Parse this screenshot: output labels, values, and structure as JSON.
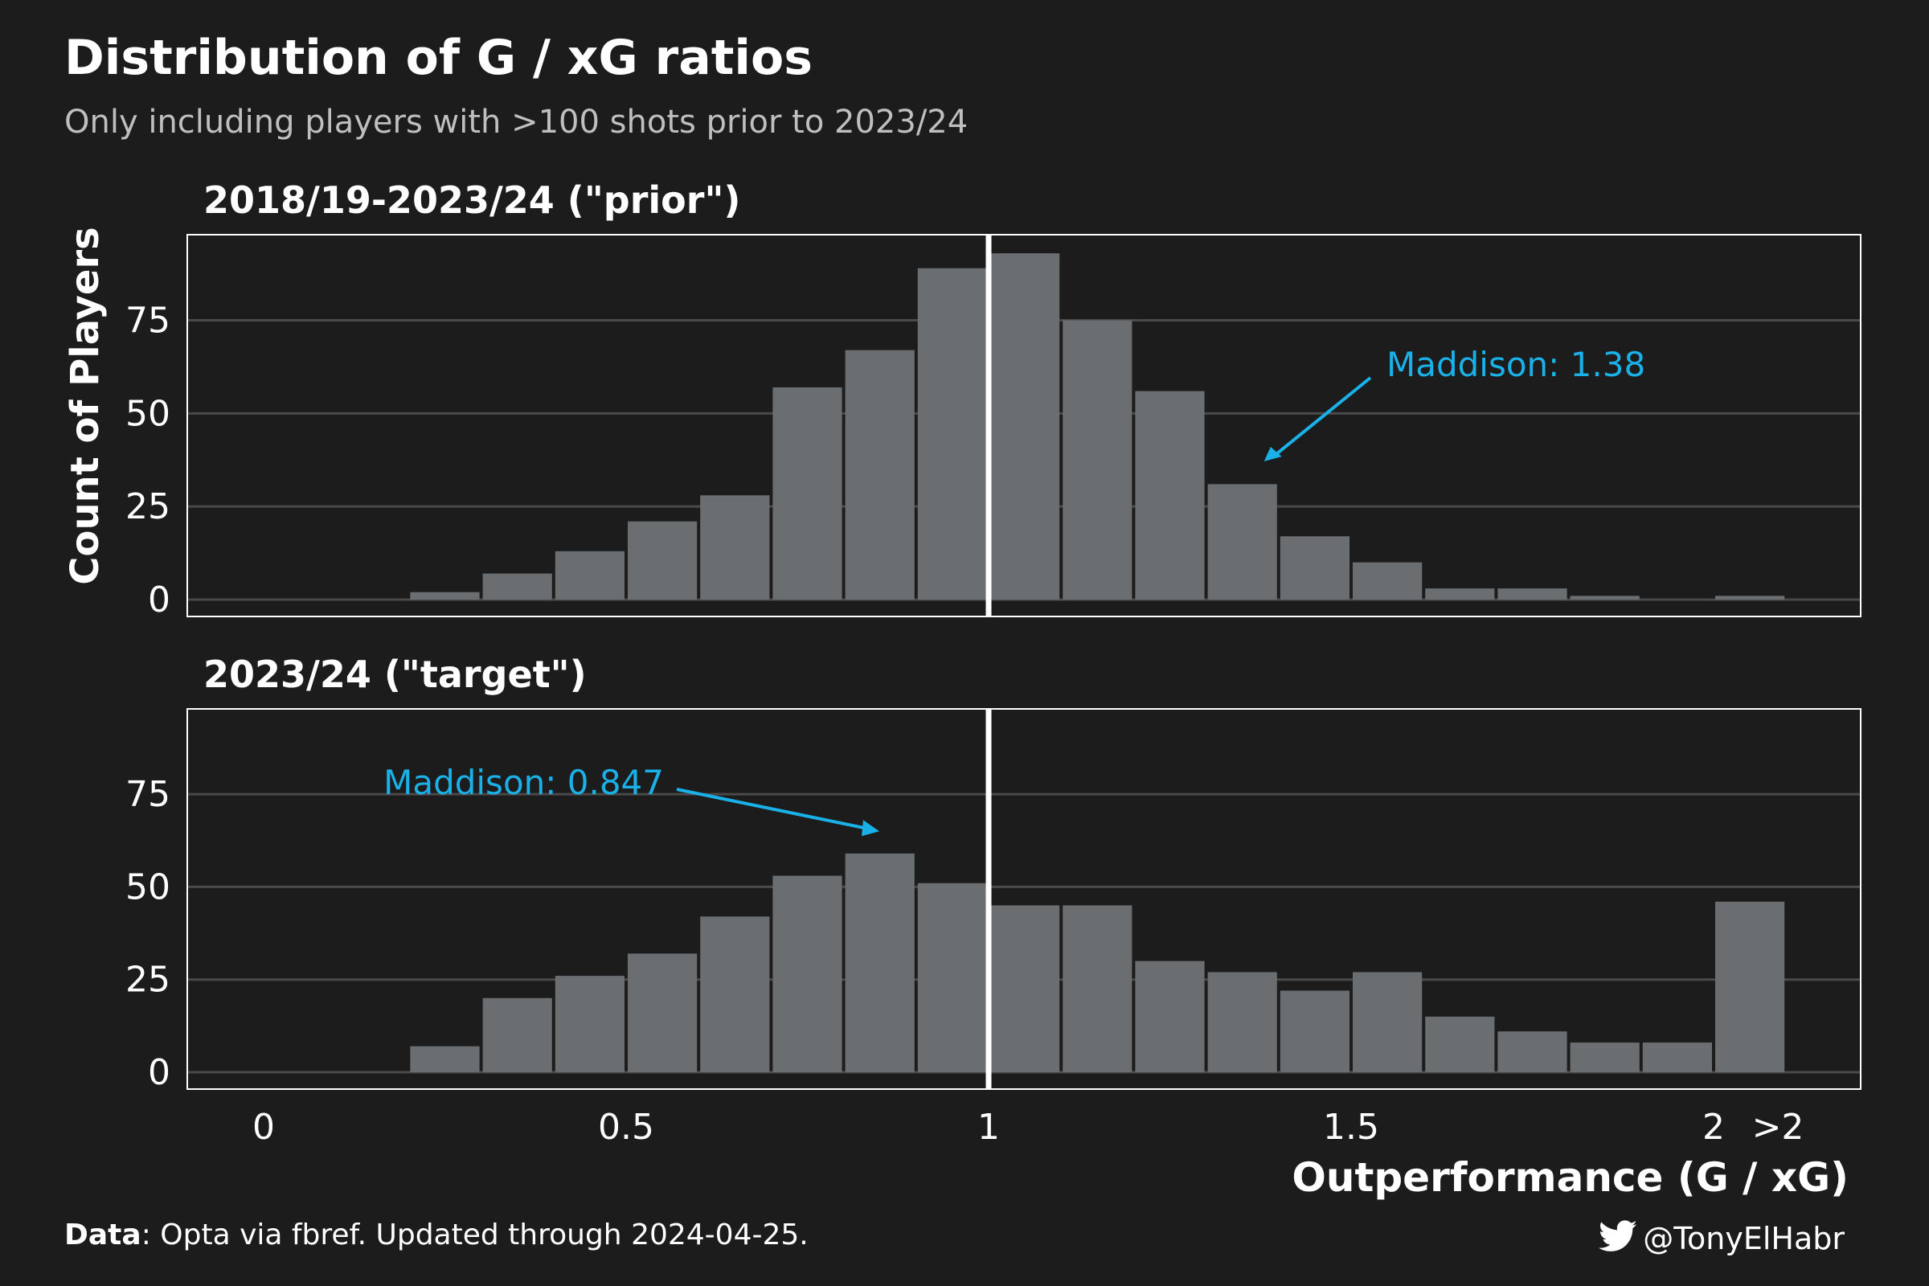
{
  "chart_data": {
    "type": "bar",
    "title": "Distribution of G / xG ratios",
    "subtitle": "Only including players with >100 shots prior to 2023/24",
    "xlabel": "Outperformance (G / xG)",
    "ylabel": "Count of Players",
    "x_ticks": [
      "0",
      "0.5",
      "1",
      "1.5",
      "2",
      ">2"
    ],
    "y_ticks": [
      "0",
      "25",
      "50",
      "75"
    ],
    "ylim": [
      0,
      98
    ],
    "grid": true,
    "reference_line_x": 1,
    "bin_centers": [
      0.05,
      0.15,
      0.25,
      0.35,
      0.45,
      0.55,
      0.65,
      0.75,
      0.85,
      0.95,
      1.05,
      1.15,
      1.25,
      1.35,
      1.45,
      1.55,
      1.65,
      1.75,
      1.85,
      1.95,
      2.05
    ],
    "panels": [
      {
        "name": "2018/19-2023/24 (\"prior\")",
        "values": [
          0,
          0,
          2,
          7,
          13,
          21,
          28,
          57,
          67,
          89,
          93,
          75,
          56,
          31,
          17,
          10,
          3,
          3,
          1,
          0,
          1
        ],
        "annotation": {
          "text": "Maddison: 1.38",
          "x": 1.38
        }
      },
      {
        "name": "2023/24 (\"target\")",
        "values": [
          0,
          0,
          7,
          20,
          26,
          32,
          42,
          53,
          59,
          51,
          45,
          45,
          30,
          27,
          22,
          27,
          15,
          11,
          8,
          8,
          46
        ],
        "annotation": {
          "text": "Maddison: 0.847",
          "x": 0.847
        }
      }
    ]
  },
  "caption": {
    "label": "Data",
    "text": ": Opta via fbref. Updated through 2024-04-25."
  },
  "handle": "@TonyElHabr",
  "colors": {
    "background": "#1c1c1c",
    "bar": "#6b6e70",
    "grid": "#4a4a4a",
    "annotation": "#1ab0e8",
    "reference_line": "#ffffff"
  }
}
